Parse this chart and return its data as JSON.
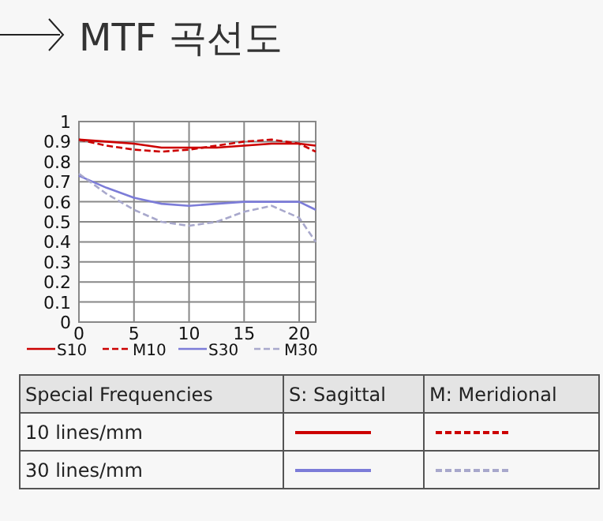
{
  "chart_data": {
    "type": "line",
    "title": "MTF 곡선도",
    "x": [
      0,
      2.5,
      5,
      7.5,
      10,
      12.5,
      15,
      17.5,
      20,
      21.5
    ],
    "series": [
      {
        "name": "S10",
        "color": "#cc0000",
        "line_style": "solid",
        "values": [
          0.91,
          0.9,
          0.89,
          0.87,
          0.87,
          0.87,
          0.88,
          0.89,
          0.89,
          0.88
        ]
      },
      {
        "name": "M10",
        "color": "#cc0000",
        "line_style": "dashed",
        "values": [
          0.91,
          0.88,
          0.86,
          0.85,
          0.86,
          0.88,
          0.9,
          0.91,
          0.89,
          0.85
        ]
      },
      {
        "name": "S30",
        "color": "#7c7cd8",
        "line_style": "solid",
        "values": [
          0.73,
          0.67,
          0.62,
          0.59,
          0.58,
          0.59,
          0.6,
          0.6,
          0.6,
          0.56
        ]
      },
      {
        "name": "M30",
        "color": "#a8a8cc",
        "line_style": "dashed",
        "values": [
          0.74,
          0.64,
          0.56,
          0.5,
          0.48,
          0.5,
          0.55,
          0.58,
          0.52,
          0.4
        ]
      }
    ],
    "xlim": [
      0,
      21.5
    ],
    "ylim": [
      0,
      1
    ],
    "xticks": [
      0,
      5,
      10,
      15,
      20
    ],
    "yticks": [
      0,
      0.1,
      0.2,
      0.3,
      0.4,
      0.5,
      0.6,
      0.7,
      0.8,
      0.9,
      1
    ],
    "grid": true,
    "legend": "bottom",
    "annotations": [
      "Special Frequencies",
      "S: Sagittal",
      "M: Meridional",
      "10 lines/mm",
      "30 lines/mm"
    ]
  }
}
